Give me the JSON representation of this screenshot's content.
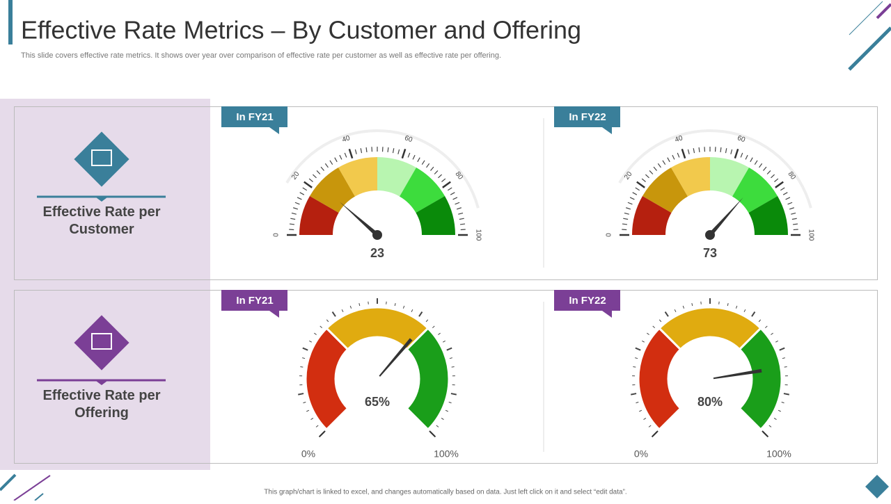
{
  "header": {
    "title": "Effective Rate Metrics – By Customer and Offering",
    "subtitle": "This slide covers effective rate metrics. It shows over year over comparison of effective rate per customer as well as effective rate per offering."
  },
  "sections": [
    {
      "label": "Effective Rate per Customer",
      "accent": "#3a7f9a",
      "gauges": [
        {
          "type": "semicircle",
          "tag": "In FY21",
          "value": 23,
          "lim": [
            0,
            100
          ],
          "ticks": [
            0,
            20,
            40,
            60,
            80,
            100
          ],
          "colors": [
            "#b5200f",
            "#c8960c",
            "#f2c94c",
            "#b8f5b0",
            "#3ddc3d",
            "#0a8a0a"
          ]
        },
        {
          "type": "semicircle",
          "tag": "In FY22",
          "value": 73,
          "lim": [
            0,
            100
          ],
          "ticks": [
            0,
            20,
            40,
            60,
            80,
            100
          ],
          "colors": [
            "#b5200f",
            "#c8960c",
            "#f2c94c",
            "#b8f5b0",
            "#3ddc3d",
            "#0a8a0a"
          ]
        }
      ]
    },
    {
      "label": "Effective Rate per Offering",
      "accent": "#7b3f96",
      "gauges": [
        {
          "type": "arc270",
          "tag": "In FY21",
          "value": 65,
          "value_label": "65%",
          "lim": [
            0,
            100
          ],
          "ticks": [
            {
              "value": 0,
              "label": "0%"
            },
            {
              "value": 100,
              "label": "100%"
            }
          ],
          "colors": [
            "#d22e10",
            "#e0ab10",
            "#1a9e1a"
          ]
        },
        {
          "type": "arc270",
          "tag": "In FY22",
          "value": 80,
          "value_label": "80%",
          "lim": [
            0,
            100
          ],
          "ticks": [
            {
              "value": 0,
              "label": "0%"
            },
            {
              "value": 100,
              "label": "100%"
            }
          ],
          "colors": [
            "#d22e10",
            "#e0ab10",
            "#1a9e1a"
          ]
        }
      ]
    }
  ],
  "footer": "This graph/chart is linked to excel, and changes automatically based on data. Just left click on it and select “edit data”."
}
